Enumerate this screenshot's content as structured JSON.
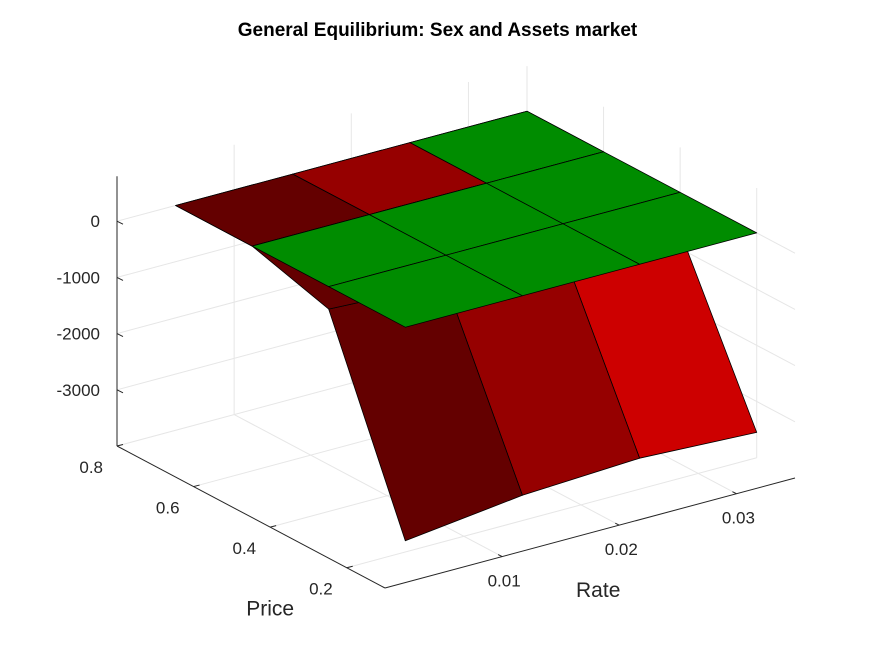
{
  "figure": {
    "title": "General Equilibrium: Sex and Assets market"
  },
  "colors": {
    "dark_red": "#640000",
    "mid_red": "#960000",
    "bright_red": "#cd0000",
    "green": "#008c00"
  },
  "chart_data": {
    "type": "surface",
    "title": "General Equilibrium: Sex and Assets market",
    "xlabel": "Rate",
    "ylabel": "Price",
    "zlabel": "",
    "x_ticks": [
      "0.01",
      "0.02",
      "0.03"
    ],
    "y_ticks": [
      "0.2",
      "0.4",
      "0.6",
      "0.8"
    ],
    "z_ticks": [
      "0",
      "-1000",
      "-2000",
      "-3000"
    ],
    "xlim": [
      0,
      0.035
    ],
    "ylim": [
      0.1,
      0.8
    ],
    "zlim": [
      -4000,
      800
    ],
    "grid": true,
    "x": [
      0.005,
      0.015,
      0.025,
      0.035
    ],
    "y": [
      0.2,
      0.4,
      0.6,
      0.8
    ],
    "series": [
      {
        "color_key": "green",
        "z": [
          [
            0,
            0,
            0,
            0
          ],
          [
            0,
            0,
            0,
            0
          ],
          [
            0,
            0,
            0,
            0
          ],
          [
            0,
            0,
            0,
            0
          ]
        ],
        "cell_colors": [
          [
            "green",
            "green",
            "green"
          ],
          [
            "green",
            "green",
            "green"
          ],
          [
            "green",
            "green",
            "green"
          ]
        ]
      },
      {
        "color_key": "red",
        "z": [
          [
            -3800,
            -3550,
            -3450,
            -3550
          ],
          [
            -400,
            -500,
            -500,
            -700
          ],
          [
            0,
            0,
            0,
            0
          ],
          [
            0,
            0,
            0,
            0
          ]
        ],
        "cell_colors": [
          [
            "dark_red",
            "mid_red",
            "bright_red"
          ],
          [
            "dark_red",
            "mid_red",
            "green"
          ],
          [
            "dark_red",
            "mid_red",
            "green"
          ]
        ]
      }
    ]
  }
}
